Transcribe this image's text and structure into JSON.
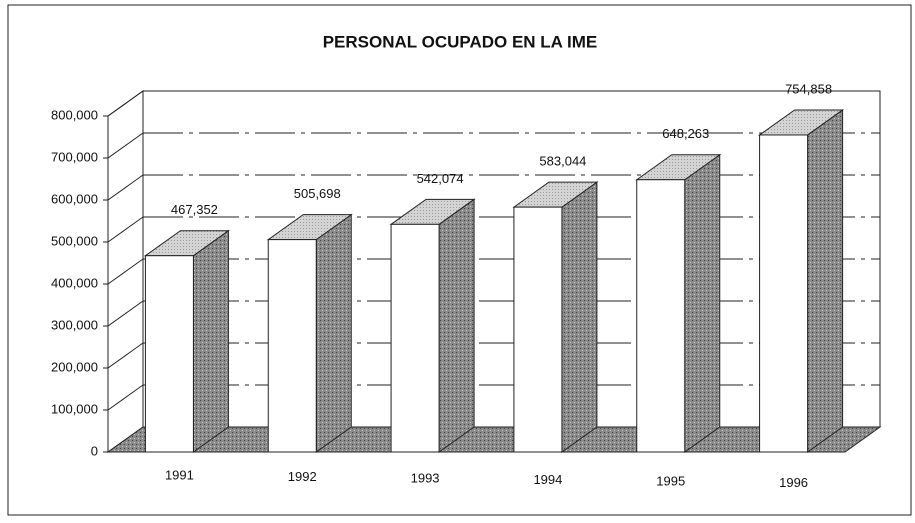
{
  "chart_data": {
    "type": "bar3d",
    "title": "PERSONAL OCUPADO EN LA IME",
    "categories": [
      "1991",
      "1992",
      "1993",
      "1994",
      "1995",
      "1996"
    ],
    "values": [
      467352,
      505698,
      542074,
      583044,
      648263,
      754858
    ],
    "value_labels": [
      "467,352",
      "505,698",
      "542,074",
      "583,044",
      "648,263",
      "754,858"
    ],
    "ylim": [
      0,
      800000
    ],
    "yticks": [
      {
        "value": 0,
        "label": "0"
      },
      {
        "value": 100000,
        "label": "100,000"
      },
      {
        "value": 200000,
        "label": "200,000"
      },
      {
        "value": 300000,
        "label": "300,000"
      },
      {
        "value": 400000,
        "label": "400,000"
      },
      {
        "value": 500000,
        "label": "500,000"
      },
      {
        "value": 600000,
        "label": "600,000"
      },
      {
        "value": 700000,
        "label": "700,000"
      },
      {
        "value": 800000,
        "label": "800,000"
      }
    ],
    "grid": true
  }
}
